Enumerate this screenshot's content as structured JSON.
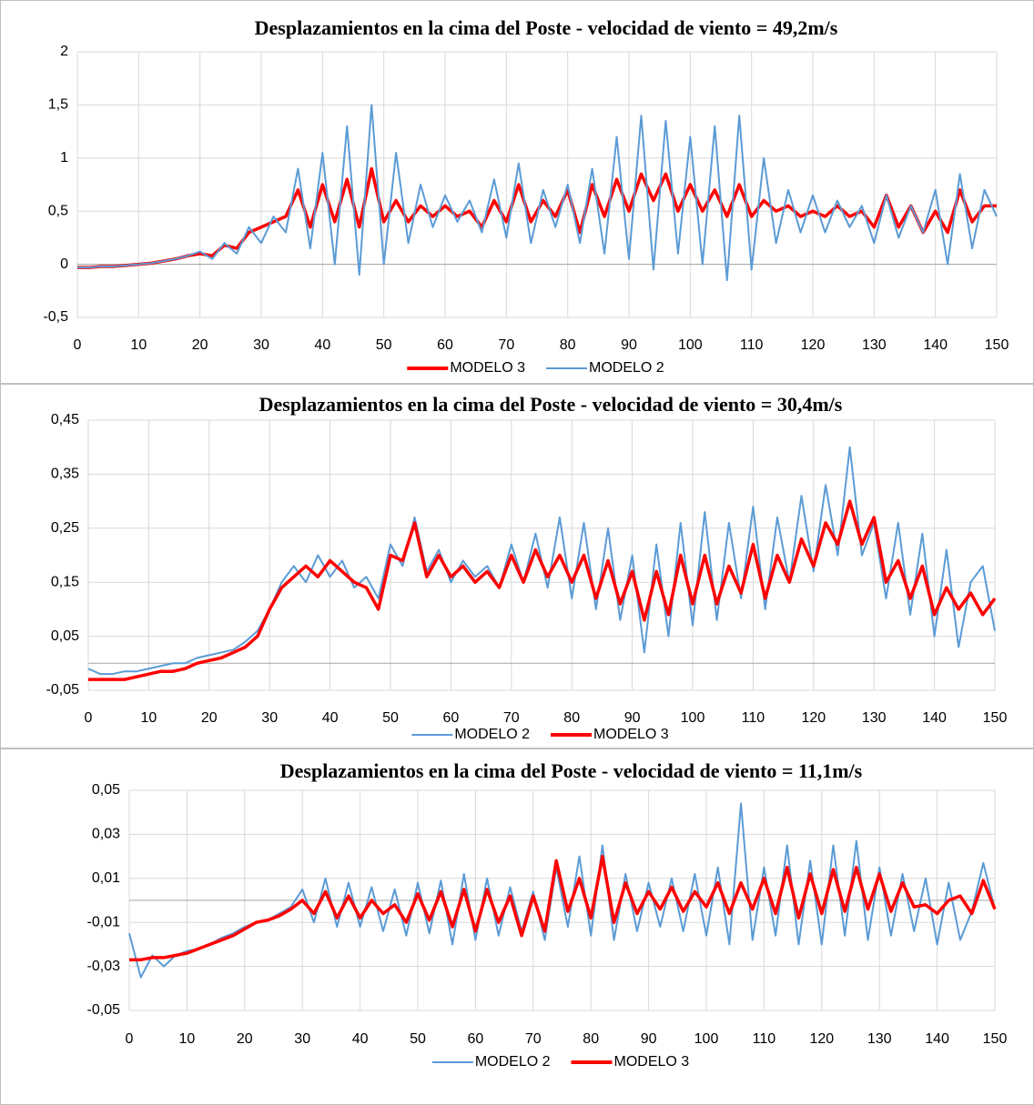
{
  "chart_data": [
    {
      "type": "line",
      "title": "Desplazamientos en la cima del Poste - velocidad de viento = 49,2m/s",
      "x": [
        0,
        2,
        4,
        6,
        8,
        10,
        12,
        14,
        16,
        18,
        20,
        22,
        24,
        26,
        28,
        30,
        32,
        34,
        36,
        38,
        40,
        42,
        44,
        46,
        48,
        50,
        52,
        54,
        56,
        58,
        60,
        62,
        64,
        66,
        68,
        70,
        72,
        74,
        76,
        78,
        80,
        82,
        84,
        86,
        88,
        90,
        92,
        94,
        96,
        98,
        100,
        102,
        104,
        106,
        108,
        110,
        112,
        114,
        116,
        118,
        120,
        122,
        124,
        126,
        128,
        130,
        132,
        134,
        136,
        138,
        140,
        142,
        144,
        146,
        148,
        150
      ],
      "xlim": [
        0,
        150
      ],
      "xticks": [
        0,
        10,
        20,
        30,
        40,
        50,
        60,
        70,
        80,
        90,
        100,
        110,
        120,
        130,
        140,
        150
      ],
      "ylim": [
        -0.5,
        2
      ],
      "yticks": [
        {
          "value": -0.5,
          "label": "-0,5"
        },
        0,
        {
          "value": 0.5,
          "label": "0,5"
        },
        1,
        {
          "value": 1.5,
          "label": "1,5"
        },
        2
      ],
      "grid": true,
      "series": [
        {
          "name": "MODELO 3",
          "color": "#ff0000",
          "values": [
            -0.03,
            -0.03,
            -0.02,
            -0.02,
            -0.01,
            0.0,
            0.01,
            0.03,
            0.05,
            0.08,
            0.1,
            0.08,
            0.18,
            0.15,
            0.3,
            0.35,
            0.4,
            0.45,
            0.7,
            0.35,
            0.75,
            0.4,
            0.8,
            0.35,
            0.9,
            0.4,
            0.6,
            0.4,
            0.55,
            0.45,
            0.55,
            0.45,
            0.5,
            0.35,
            0.6,
            0.4,
            0.75,
            0.4,
            0.6,
            0.45,
            0.7,
            0.3,
            0.75,
            0.45,
            0.8,
            0.5,
            0.85,
            0.6,
            0.85,
            0.5,
            0.75,
            0.5,
            0.7,
            0.45,
            0.75,
            0.45,
            0.6,
            0.5,
            0.55,
            0.45,
            0.5,
            0.45,
            0.55,
            0.45,
            0.5,
            0.35,
            0.65,
            0.35,
            0.55,
            0.3,
            0.5,
            0.3,
            0.7,
            0.4,
            0.55,
            0.55
          ]
        },
        {
          "name": "MODELO 2",
          "color": "#5b9bd5",
          "values": [
            -0.03,
            -0.03,
            -0.02,
            -0.02,
            -0.01,
            0.0,
            0.01,
            0.03,
            0.05,
            0.08,
            0.12,
            0.05,
            0.2,
            0.1,
            0.35,
            0.2,
            0.45,
            0.3,
            0.9,
            0.15,
            1.05,
            0.0,
            1.3,
            -0.1,
            1.5,
            0.0,
            1.05,
            0.2,
            0.75,
            0.35,
            0.65,
            0.4,
            0.6,
            0.3,
            0.8,
            0.25,
            0.95,
            0.2,
            0.7,
            0.35,
            0.75,
            0.2,
            0.9,
            0.1,
            1.2,
            0.05,
            1.4,
            -0.05,
            1.35,
            0.1,
            1.2,
            0.0,
            1.3,
            -0.15,
            1.4,
            -0.05,
            1.0,
            0.2,
            0.7,
            0.3,
            0.65,
            0.3,
            0.6,
            0.35,
            0.55,
            0.2,
            0.65,
            0.25,
            0.55,
            0.3,
            0.7,
            0.0,
            0.85,
            0.15,
            0.7,
            0.45
          ]
        }
      ]
    },
    {
      "type": "line",
      "title": "Desplazamientos en la cima del Poste - velocidad de viento = 30,4m/s",
      "x": [
        0,
        2,
        4,
        6,
        8,
        10,
        12,
        14,
        16,
        18,
        20,
        22,
        24,
        26,
        28,
        30,
        32,
        34,
        36,
        38,
        40,
        42,
        44,
        46,
        48,
        50,
        52,
        54,
        56,
        58,
        60,
        62,
        64,
        66,
        68,
        70,
        72,
        74,
        76,
        78,
        80,
        82,
        84,
        86,
        88,
        90,
        92,
        94,
        96,
        98,
        100,
        102,
        104,
        106,
        108,
        110,
        112,
        114,
        116,
        118,
        120,
        122,
        124,
        126,
        128,
        130,
        132,
        134,
        136,
        138,
        140,
        142,
        144,
        146,
        148,
        150
      ],
      "xlim": [
        0,
        150
      ],
      "xticks": [
        0,
        10,
        20,
        30,
        40,
        50,
        60,
        70,
        80,
        90,
        100,
        110,
        120,
        130,
        140,
        150
      ],
      "ylim": [
        -0.05,
        0.45
      ],
      "yticks": [
        {
          "value": -0.05,
          "label": "-0,05"
        },
        {
          "value": 0.05,
          "label": "0,05"
        },
        {
          "value": 0.15,
          "label": "0,15"
        },
        {
          "value": 0.25,
          "label": "0,25"
        },
        {
          "value": 0.35,
          "label": "0,35"
        },
        {
          "value": 0.45,
          "label": "0,45"
        }
      ],
      "grid": true,
      "series": [
        {
          "name": "MODELO 2",
          "color": "#5b9bd5",
          "values": [
            -0.01,
            -0.02,
            -0.02,
            -0.015,
            -0.015,
            -0.01,
            -0.005,
            0.0,
            0.0,
            0.01,
            0.015,
            0.02,
            0.025,
            0.04,
            0.06,
            0.1,
            0.15,
            0.18,
            0.15,
            0.2,
            0.16,
            0.19,
            0.14,
            0.16,
            0.12,
            0.22,
            0.18,
            0.27,
            0.17,
            0.21,
            0.15,
            0.19,
            0.16,
            0.18,
            0.14,
            0.22,
            0.15,
            0.24,
            0.14,
            0.27,
            0.12,
            0.26,
            0.1,
            0.25,
            0.08,
            0.2,
            0.02,
            0.22,
            0.05,
            0.26,
            0.07,
            0.28,
            0.08,
            0.26,
            0.12,
            0.29,
            0.1,
            0.27,
            0.15,
            0.31,
            0.17,
            0.33,
            0.2,
            0.4,
            0.2,
            0.26,
            0.12,
            0.26,
            0.09,
            0.24,
            0.05,
            0.21,
            0.03,
            0.15,
            0.18,
            0.06
          ]
        },
        {
          "name": "MODELO 3",
          "color": "#ff0000",
          "values": [
            -0.03,
            -0.03,
            -0.03,
            -0.03,
            -0.025,
            -0.02,
            -0.015,
            -0.015,
            -0.01,
            0.0,
            0.005,
            0.01,
            0.02,
            0.03,
            0.05,
            0.1,
            0.14,
            0.16,
            0.18,
            0.16,
            0.19,
            0.17,
            0.15,
            0.14,
            0.1,
            0.2,
            0.19,
            0.26,
            0.16,
            0.2,
            0.16,
            0.18,
            0.15,
            0.17,
            0.14,
            0.2,
            0.15,
            0.21,
            0.16,
            0.2,
            0.15,
            0.2,
            0.12,
            0.19,
            0.11,
            0.17,
            0.08,
            0.17,
            0.09,
            0.2,
            0.11,
            0.2,
            0.11,
            0.18,
            0.13,
            0.22,
            0.12,
            0.2,
            0.15,
            0.23,
            0.18,
            0.26,
            0.22,
            0.3,
            0.22,
            0.27,
            0.15,
            0.19,
            0.12,
            0.18,
            0.09,
            0.14,
            0.1,
            0.13,
            0.09,
            0.12
          ]
        }
      ]
    },
    {
      "type": "line",
      "title": "Desplazamientos en la cima del Poste - velocidad de viento = 11,1m/s",
      "x": [
        0,
        2,
        4,
        6,
        8,
        10,
        12,
        14,
        16,
        18,
        20,
        22,
        24,
        26,
        28,
        30,
        32,
        34,
        36,
        38,
        40,
        42,
        44,
        46,
        48,
        50,
        52,
        54,
        56,
        58,
        60,
        62,
        64,
        66,
        68,
        70,
        72,
        74,
        76,
        78,
        80,
        82,
        84,
        86,
        88,
        90,
        92,
        94,
        96,
        98,
        100,
        102,
        104,
        106,
        108,
        110,
        112,
        114,
        116,
        118,
        120,
        122,
        124,
        126,
        128,
        130,
        132,
        134,
        136,
        138,
        140,
        142,
        144,
        146,
        148,
        150
      ],
      "xlim": [
        0,
        150
      ],
      "xticks": [
        0,
        10,
        20,
        30,
        40,
        50,
        60,
        70,
        80,
        90,
        100,
        110,
        120,
        130,
        140,
        150
      ],
      "ylim": [
        -0.05,
        0.05
      ],
      "yticks": [
        {
          "value": -0.05,
          "label": "-0,05"
        },
        {
          "value": -0.03,
          "label": "-0,03"
        },
        {
          "value": -0.01,
          "label": "-0,01"
        },
        {
          "value": 0.01,
          "label": "0,01"
        },
        {
          "value": 0.03,
          "label": "0,03"
        },
        {
          "value": 0.05,
          "label": "0,05"
        }
      ],
      "grid": true,
      "series": [
        {
          "name": "MODELO 2",
          "color": "#5b9bd5",
          "values": [
            -0.015,
            -0.035,
            -0.025,
            -0.03,
            -0.025,
            -0.023,
            -0.022,
            -0.02,
            -0.017,
            -0.015,
            -0.012,
            -0.01,
            -0.009,
            -0.006,
            -0.003,
            0.005,
            -0.01,
            0.01,
            -0.012,
            0.008,
            -0.012,
            0.006,
            -0.014,
            0.005,
            -0.016,
            0.008,
            -0.015,
            0.009,
            -0.02,
            0.012,
            -0.018,
            0.01,
            -0.016,
            0.006,
            -0.014,
            0.004,
            -0.018,
            0.015,
            -0.012,
            0.02,
            -0.016,
            0.025,
            -0.018,
            0.012,
            -0.014,
            0.008,
            -0.012,
            0.01,
            -0.014,
            0.012,
            -0.016,
            0.015,
            -0.02,
            0.044,
            -0.018,
            0.015,
            -0.016,
            0.025,
            -0.02,
            0.018,
            -0.02,
            0.025,
            -0.016,
            0.027,
            -0.018,
            0.015,
            -0.016,
            0.012,
            -0.014,
            0.01,
            -0.02,
            0.008,
            -0.018,
            -0.005,
            0.017,
            -0.004
          ]
        },
        {
          "name": "MODELO 3",
          "color": "#ff0000",
          "values": [
            -0.027,
            -0.027,
            -0.026,
            -0.026,
            -0.025,
            -0.024,
            -0.022,
            -0.02,
            -0.018,
            -0.016,
            -0.013,
            -0.01,
            -0.009,
            -0.007,
            -0.004,
            0.0,
            -0.006,
            0.004,
            -0.008,
            0.002,
            -0.008,
            0.0,
            -0.006,
            -0.002,
            -0.01,
            0.003,
            -0.009,
            0.004,
            -0.012,
            0.005,
            -0.014,
            0.005,
            -0.01,
            0.002,
            -0.016,
            0.002,
            -0.014,
            0.018,
            -0.005,
            0.01,
            -0.008,
            0.02,
            -0.01,
            0.008,
            -0.006,
            0.004,
            -0.004,
            0.006,
            -0.005,
            0.004,
            -0.003,
            0.008,
            -0.006,
            0.008,
            -0.004,
            0.01,
            -0.006,
            0.015,
            -0.008,
            0.012,
            -0.006,
            0.014,
            -0.005,
            0.015,
            -0.004,
            0.012,
            -0.005,
            0.008,
            -0.003,
            -0.002,
            -0.006,
            0.0,
            0.002,
            -0.006,
            0.009,
            -0.004
          ]
        }
      ]
    }
  ]
}
